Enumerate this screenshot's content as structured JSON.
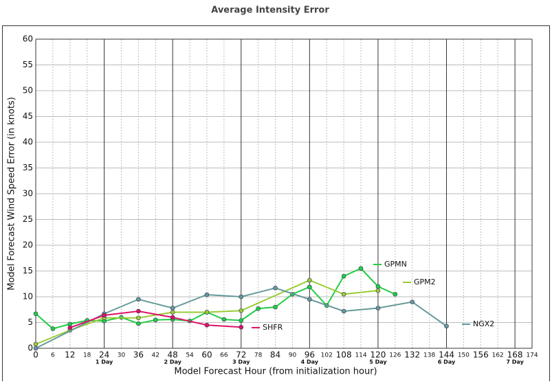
{
  "chart_data": {
    "type": "line",
    "title": "Average Intensity Error",
    "xlabel": "Model Forecast Hour (from initialization hour)",
    "ylabel": "Model Forecast Wind Speed Error (in knots)",
    "xlim": [
      0,
      174
    ],
    "ylim": [
      0,
      60
    ],
    "xticks": [
      0,
      6,
      12,
      18,
      24,
      30,
      36,
      42,
      48,
      54,
      60,
      66,
      72,
      78,
      84,
      90,
      96,
      102,
      108,
      114,
      120,
      126,
      132,
      138,
      144,
      150,
      156,
      162,
      168,
      174
    ],
    "yticks": [
      0,
      5,
      10,
      15,
      20,
      25,
      30,
      35,
      40,
      45,
      50,
      55,
      60
    ],
    "day_labels": [
      {
        "value": 24,
        "label": "1 Day"
      },
      {
        "value": 48,
        "label": "2 Day"
      },
      {
        "value": 72,
        "label": "3 Day"
      },
      {
        "value": 96,
        "label": "4 Day"
      },
      {
        "value": 120,
        "label": "5 Day"
      },
      {
        "value": 144,
        "label": "6 Day"
      },
      {
        "value": 168,
        "label": "7 Day"
      }
    ],
    "grid": true,
    "series": [
      {
        "name": "GPMN",
        "color": "#22cc44",
        "x": [
          0,
          6,
          12,
          18,
          24,
          30,
          36,
          42,
          48,
          54,
          60,
          66,
          72,
          78,
          84,
          90,
          96,
          102,
          108,
          114,
          120,
          126
        ],
        "values": [
          6.7,
          3.8,
          4.7,
          5.4,
          5.3,
          6.0,
          4.8,
          5.5,
          5.6,
          5.3,
          7.0,
          5.6,
          5.4,
          7.7,
          8.0,
          10.5,
          11.9,
          8.3,
          14.0,
          15.5,
          12.0,
          10.5
        ]
      },
      {
        "name": "GPM2",
        "color": "#99cc33",
        "x": [
          0,
          12,
          24,
          36,
          48,
          60,
          72,
          96,
          108,
          120
        ],
        "values": [
          0.8,
          3.5,
          5.9,
          5.9,
          7.0,
          7.0,
          7.3,
          13.2,
          10.5,
          11.2
        ]
      },
      {
        "name": "NGX2",
        "color": "#669999",
        "x": [
          0,
          24,
          36,
          48,
          60,
          72,
          84,
          96,
          108,
          120,
          132,
          144
        ],
        "values": [
          0,
          6.7,
          9.5,
          7.8,
          10.4,
          10.0,
          11.7,
          9.5,
          7.2,
          7.8,
          9.0,
          4.3
        ]
      },
      {
        "name": "SHFR",
        "color": "#dd1166",
        "x": [
          12,
          24,
          36,
          48,
          60,
          72
        ],
        "values": [
          4.0,
          6.4,
          7.2,
          6.0,
          4.5,
          4.1
        ]
      }
    ]
  }
}
